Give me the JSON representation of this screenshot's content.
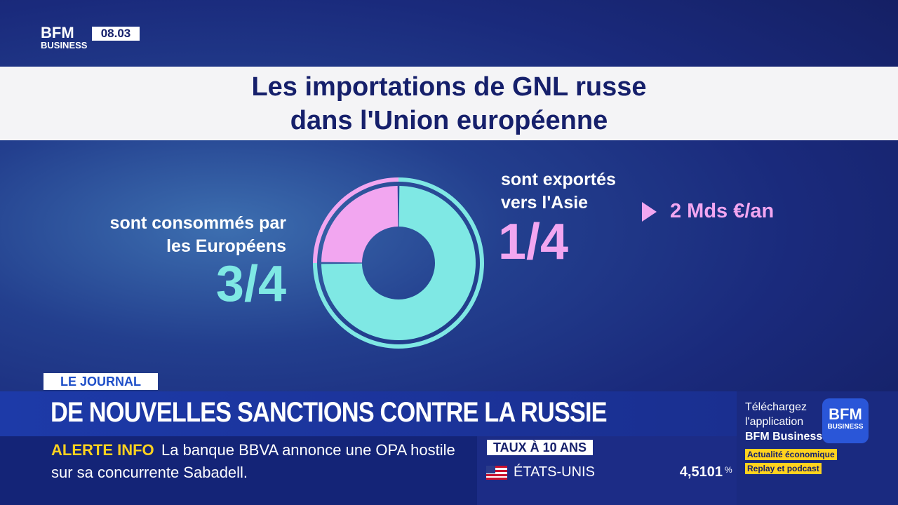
{
  "logo": {
    "top": "BFM",
    "bottom": "BUSINESS"
  },
  "time": "08.03",
  "chart_data": {
    "type": "donut",
    "title": "Les importations de GNL russe dans l'Union européenne",
    "categories": [
      "sont consommés par les Européens",
      "sont exportés vers l'Asie"
    ],
    "values": [
      0.75,
      0.25
    ],
    "value_labels": [
      "3/4",
      "1/4"
    ],
    "colors": [
      "#7fe8e4",
      "#f2a6f0"
    ],
    "annotation": "2 Mds €/an"
  },
  "program": "LE JOURNAL",
  "headline": "DE NOUVELLES SANCTIONS CONTRE LA RUSSIE",
  "alert": {
    "label": "ALERTE INFO",
    "lines": [
      "La banque BBVA annonce une OPA hostile",
      "sur sa concurrente Sabadell."
    ]
  },
  "rates": {
    "title": "TAUX À 10 ANS",
    "rows": [
      {
        "country": "ÉTATS-UNIS",
        "value": "4,5101",
        "unit": "%"
      }
    ]
  },
  "promo": {
    "lines": [
      "Téléchargez",
      "l'application",
      "BFM Business"
    ],
    "tags": [
      "Actualité économique",
      "Replay et podcast"
    ],
    "logo": {
      "top": "BFM",
      "bottom": "BUSINESS"
    }
  }
}
